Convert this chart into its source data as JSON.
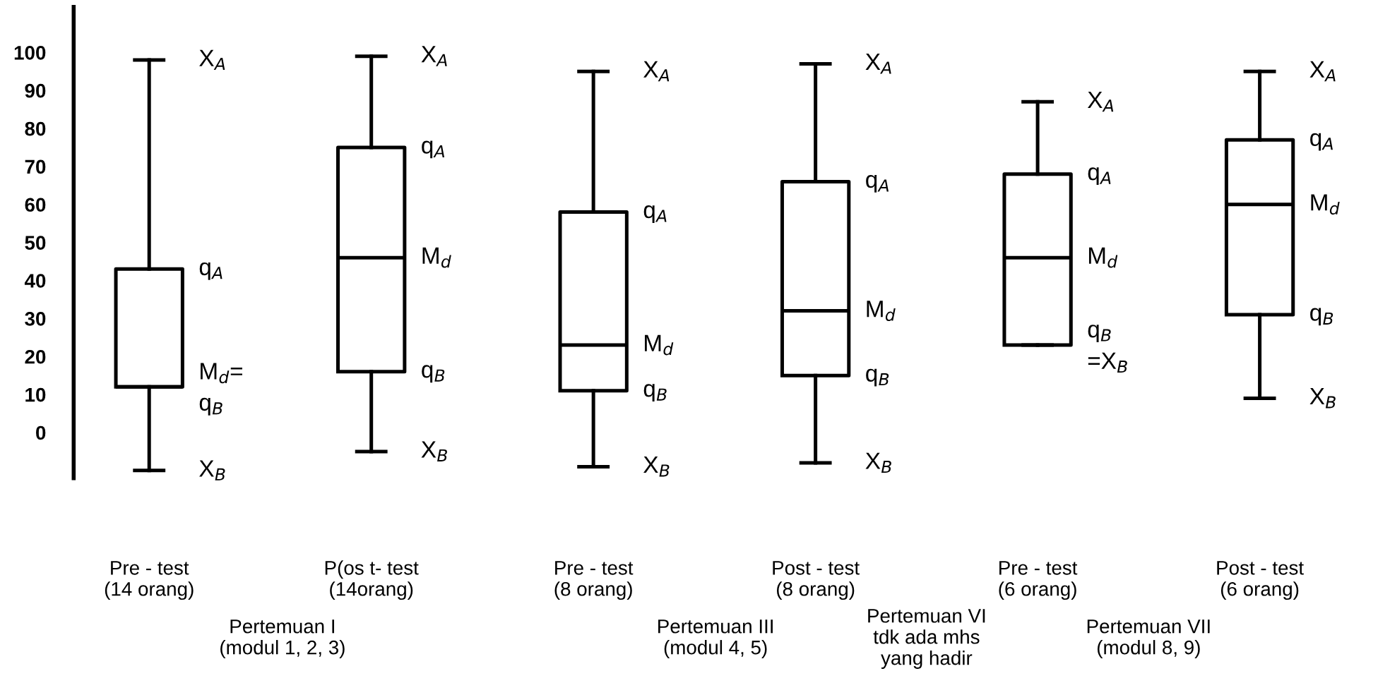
{
  "chart_data": {
    "type": "box",
    "categories": [
      "Pre - test\n(14 orang)",
      "P(os t- test\n(14orang)",
      "Pre - test\n(8 orang)",
      "Post - test\n(8 orang)",
      "Pre - test\n(6 orang)",
      "Post - test\n(6 orang)"
    ],
    "boxes": [
      {
        "low": -10,
        "q1": 12,
        "median": 12,
        "q3": 43,
        "high": 98
      },
      {
        "low": -5,
        "q1": 16,
        "median": 46,
        "q3": 75,
        "high": 99
      },
      {
        "low": -9,
        "q1": 11,
        "median": 23,
        "q3": 58,
        "high": 95
      },
      {
        "low": -8,
        "q1": 15,
        "median": 32,
        "q3": 66,
        "high": 97
      },
      {
        "low": 23,
        "q1": 23,
        "median": 46,
        "q3": 68,
        "high": 87
      },
      {
        "low": 9,
        "q1": 31,
        "median": 60,
        "q3": 77,
        "high": 95
      }
    ],
    "ylim": [
      -12,
      112
    ],
    "yticks": [
      0,
      10,
      20,
      30,
      40,
      50,
      60,
      70,
      80,
      90,
      100
    ],
    "grid": false,
    "annotations": [
      {
        "text": "X$_{A}$",
        "x": "Pre - test\n(14 orang)",
        "y": 98
      },
      {
        "text": "q$_{A}$",
        "x": "Pre - test\n(14 orang)",
        "y": 43
      },
      {
        "text": "M$_{d}$=",
        "x": "Pre - test\n(14 orang)",
        "y": 12
      },
      {
        "text": "q$_{B}$",
        "x": "Pre - test\n(14 orang)",
        "y": 12
      },
      {
        "text": "X$_{B}$",
        "x": "Pre - test\n(14 orang)",
        "y": -10
      },
      {
        "text": "X$_{A}$",
        "x": "P(os t- test\n(14orang)",
        "y": 99
      },
      {
        "text": "q$_{A}$",
        "x": "P(os t- test\n(14orang)",
        "y": 75
      },
      {
        "text": "M$_{d}$",
        "x": "P(os t- test\n(14orang)",
        "y": 46
      },
      {
        "text": "q$_{B}$",
        "x": "P(os t- test\n(14orang)",
        "y": 16
      },
      {
        "text": "X$_{B}$",
        "x": "P(os t- test\n(14orang)",
        "y": -5
      },
      {
        "text": "X$_{A}$",
        "x": "Pre - test\n(8 orang)",
        "y": 95
      },
      {
        "text": "q$_{A}$",
        "x": "Pre - test\n(8 orang)",
        "y": 58
      },
      {
        "text": "M$_{d}$",
        "x": "Pre - test\n(8 orang)",
        "y": 23
      },
      {
        "text": "q$_{B}$",
        "x": "Pre - test\n(8 orang)",
        "y": 11
      },
      {
        "text": "X$_{B}$",
        "x": "Pre - test\n(8 orang)",
        "y": -9
      },
      {
        "text": "X$_{A}$",
        "x": "Post - test\n(8 orang)",
        "y": 97
      },
      {
        "text": "q$_{A}$",
        "x": "Post - test\n(8 orang)",
        "y": 66
      },
      {
        "text": "M$_{d}$",
        "x": "Post - test\n(8 orang)",
        "y": 32
      },
      {
        "text": "q$_{B}$",
        "x": "Post - test\n(8 orang)",
        "y": 15
      },
      {
        "text": "X$_{B}$",
        "x": "Post - test\n(8 orang)",
        "y": -8
      },
      {
        "text": "X$_{A}$",
        "x": "Pre - test\n(6 orang)",
        "y": 87
      },
      {
        "text": "q$_{A}$",
        "x": "Pre - test\n(6 orang)",
        "y": 68
      },
      {
        "text": "M$_{d}$",
        "x": "Pre - test\n(6 orang)",
        "y": 46
      },
      {
        "text": "q$_{B}$",
        "x": "Pre - test\n(6 orang)",
        "y": 23
      },
      {
        "text": "=X$_{B}$",
        "x": "Pre - test\n(6 orang)",
        "y": 23
      },
      {
        "text": "X$_{A}$",
        "x": "Post - test\n(6 orang)",
        "y": 95
      },
      {
        "text": "q$_{A}$",
        "x": "Post - test\n(6 orang)",
        "y": 77
      },
      {
        "text": "M$_{d}$",
        "x": "Post - test\n(6 orang)",
        "y": 60
      },
      {
        "text": "q$_{B}$",
        "x": "Post - test\n(6 orang)",
        "y": 31
      },
      {
        "text": "X$_{B}$",
        "x": "Post - test\n(6 orang)",
        "y": 9
      },
      "Pertemuan I\n(modul 1, 2, 3)",
      "Pertemuan III\n(modul 4, 5)",
      "Pertemuan VI\ntdk ada mhs\nyang hadir",
      "Pertemuan VII\n(modul 8, 9)"
    ]
  }
}
